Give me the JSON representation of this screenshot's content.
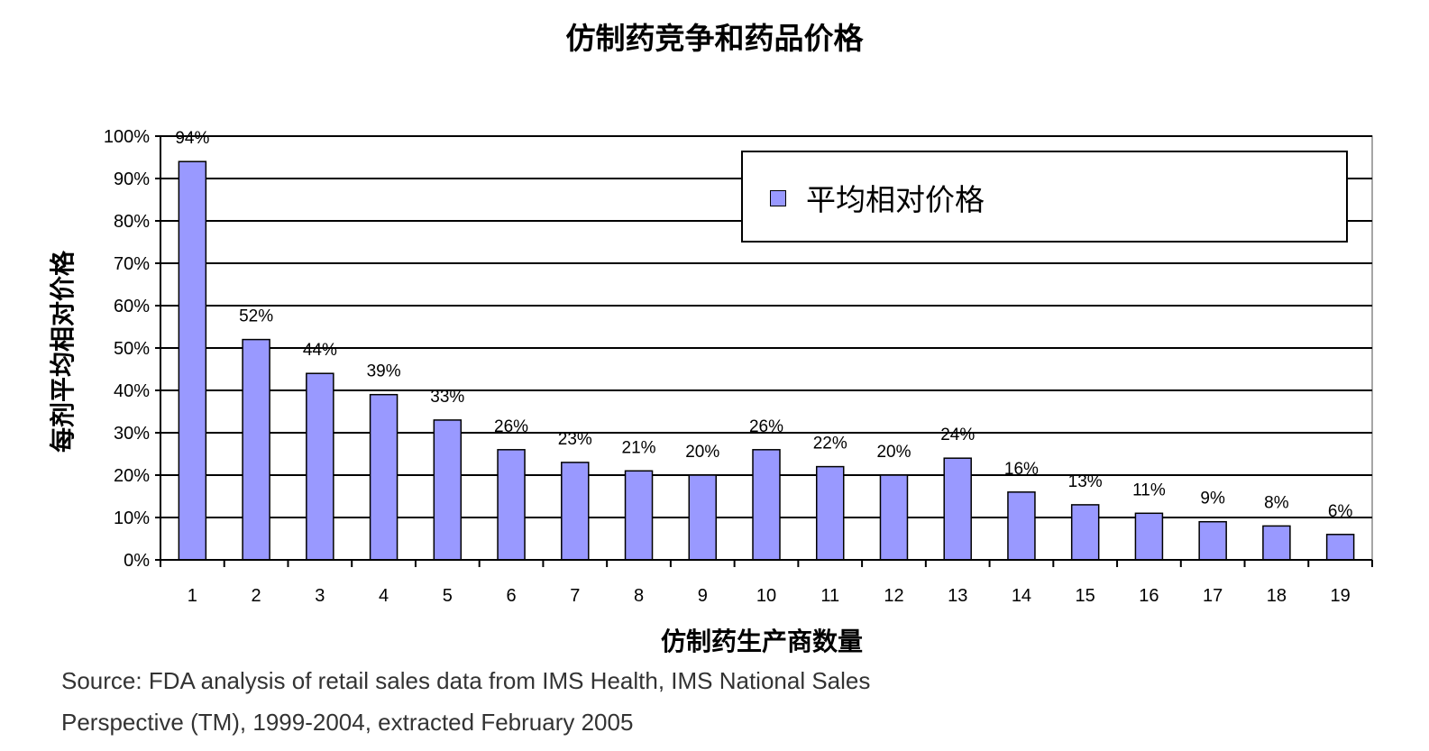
{
  "chart_data": {
    "type": "bar",
    "title": "仿制药竞争和药品价格",
    "xlabel": "仿制药生产商数量",
    "ylabel": "每剂平均相对价格",
    "categories": [
      "1",
      "2",
      "3",
      "4",
      "5",
      "6",
      "7",
      "8",
      "9",
      "10",
      "11",
      "12",
      "13",
      "14",
      "15",
      "16",
      "17",
      "18",
      "19"
    ],
    "series": [
      {
        "name": "平均相对价格",
        "values": [
          94,
          52,
          44,
          39,
          33,
          26,
          23,
          21,
          20,
          26,
          22,
          20,
          24,
          16,
          13,
          11,
          9,
          8,
          6
        ],
        "color": "#9999ff"
      }
    ],
    "data_labels": [
      "94%",
      "52%",
      "44%",
      "39%",
      "33%",
      "26%",
      "23%",
      "21%",
      "20%",
      "26%",
      "22%",
      "20%",
      "24%",
      "16%",
      "13%",
      "11%",
      "9%",
      "8%",
      "6%"
    ],
    "ylim": [
      0,
      100
    ],
    "y_ticks": [
      "0%",
      "10%",
      "20%",
      "30%",
      "40%",
      "50%",
      "60%",
      "70%",
      "80%",
      "90%",
      "100%"
    ],
    "grid": true,
    "legend_position": "top-right"
  },
  "source": {
    "line1": "Source:  FDA analysis of retail sales data from IMS Health, IMS National Sales",
    "line2": "Perspective (TM), 1999-2004, extracted February 2005"
  }
}
